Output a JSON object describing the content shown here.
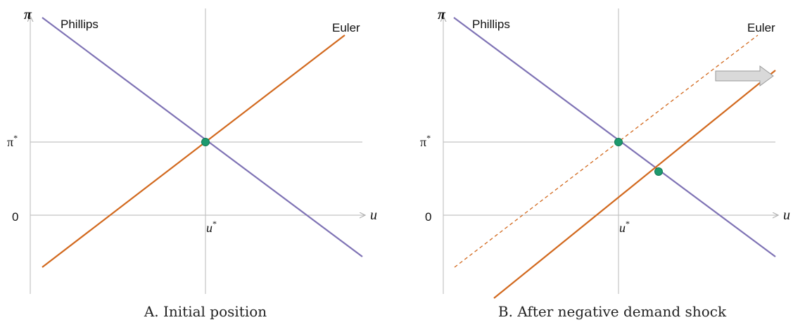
{
  "axes": {
    "y_label": "π",
    "x_label": "u",
    "zero_label": "0",
    "pi_star_label": "π",
    "u_star_label": "u",
    "star": "*"
  },
  "curves": {
    "phillips": "Phillips",
    "euler": "Euler"
  },
  "panels": [
    {
      "caption": "A. Initial position"
    },
    {
      "caption": "B. After negative demand shock"
    }
  ],
  "colors": {
    "phillips": "#7f73b5",
    "euler": "#d2691e",
    "equilibrium": "#1e9a6e",
    "axis": "#c4c4c4"
  }
}
